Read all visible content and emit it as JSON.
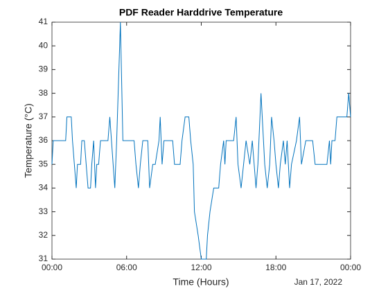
{
  "chart_data": {
    "type": "line",
    "title": "PDF Reader Harddrive Temperature",
    "x_label": "Time (Hours)",
    "y_label": "Temperature (°C)",
    "annotation": "Jan 17, 2022",
    "series": [
      {
        "name": "Temperature",
        "color": "#0072BD",
        "x": [
          0,
          0.1,
          1.1,
          1.2,
          1.55,
          1.65,
          1.8,
          1.95,
          2.05,
          2.3,
          2.4,
          2.6,
          2.75,
          2.9,
          3.1,
          3.2,
          3.35,
          3.5,
          3.6,
          3.75,
          3.9,
          4.5,
          4.65,
          5.05,
          5.2,
          5.5,
          5.7,
          6.6,
          6.75,
          6.95,
          7.1,
          7.3,
          7.7,
          7.85,
          8.1,
          8.3,
          8.6,
          8.7,
          8.85,
          9.0,
          9.7,
          9.85,
          10.3,
          10.45,
          10.7,
          11.0,
          11.15,
          11.35,
          11.45,
          11.75,
          12.0,
          12.4,
          12.5,
          12.7,
          13.0,
          13.4,
          13.55,
          13.8,
          13.9,
          14.0,
          14.6,
          14.8,
          14.95,
          15.2,
          15.4,
          15.6,
          15.9,
          16.1,
          16.4,
          16.55,
          16.8,
          17.1,
          17.3,
          17.5,
          17.65,
          17.85,
          18.0,
          18.2,
          18.35,
          18.6,
          18.75,
          18.9,
          19.1,
          19.25,
          19.65,
          19.9,
          20.05,
          20.4,
          20.95,
          21.15,
          22.1,
          22.3,
          22.4,
          22.5,
          22.75,
          22.9,
          23.7,
          23.85,
          24.0
        ],
        "values": [
          35,
          36,
          36,
          37,
          37,
          36,
          35,
          34,
          35,
          35,
          36,
          36,
          35,
          34,
          34,
          35,
          36,
          34,
          35,
          35,
          36,
          36,
          37,
          34,
          36,
          41,
          36,
          36,
          35,
          34,
          35,
          36,
          36,
          34,
          35,
          35,
          36,
          37,
          35,
          36,
          36,
          35,
          35,
          36,
          37,
          37,
          36,
          35,
          33,
          32,
          31,
          31,
          32,
          33,
          34,
          34,
          35,
          36,
          35,
          36,
          36,
          37,
          35,
          34,
          35,
          36,
          35,
          36,
          34,
          35,
          38,
          35,
          34,
          35,
          37,
          36,
          35,
          34,
          35,
          36,
          35,
          36,
          34,
          35,
          36,
          37,
          35,
          36,
          36,
          35,
          35,
          36,
          35,
          36,
          36,
          37,
          37,
          38,
          37
        ]
      }
    ],
    "xlim": [
      0,
      24
    ],
    "xticks": [
      {
        "value": 0,
        "label": "00:00"
      },
      {
        "value": 6,
        "label": "06:00"
      },
      {
        "value": 12,
        "label": "12:00"
      },
      {
        "value": 18,
        "label": "18:00"
      },
      {
        "value": 24,
        "label": "00:00"
      }
    ],
    "ylim": [
      31,
      41
    ],
    "yticks": [
      31,
      32,
      33,
      34,
      35,
      36,
      37,
      38,
      39,
      40,
      41
    ],
    "grid": false
  }
}
